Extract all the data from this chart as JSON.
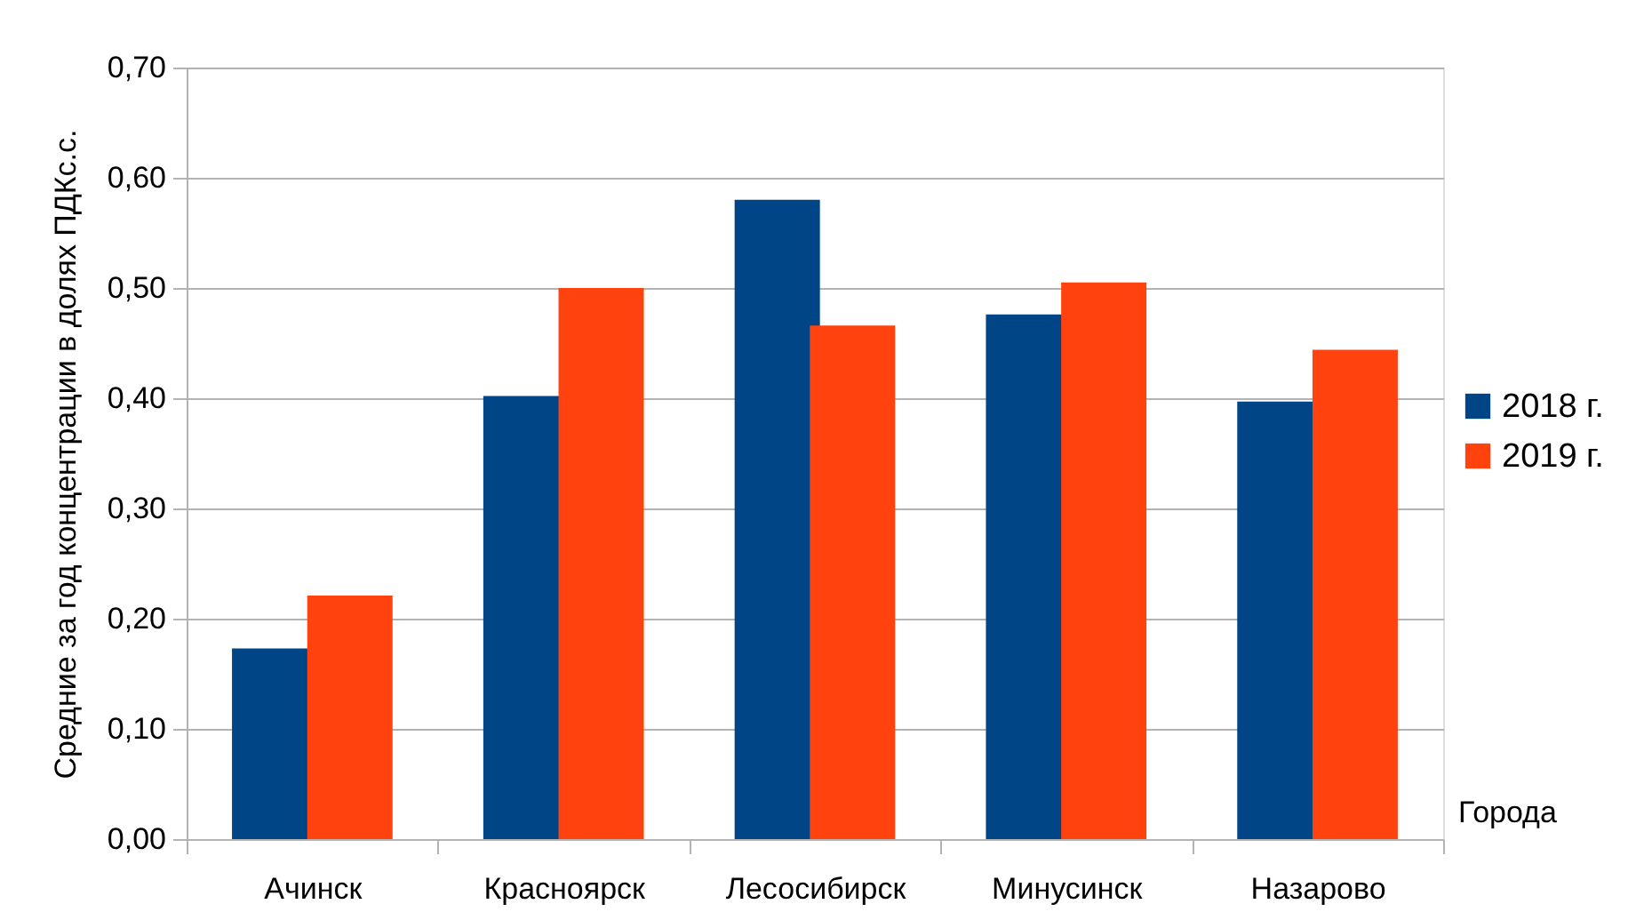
{
  "chart_data": {
    "type": "bar",
    "xlabel": "Города",
    "ylabel": "Средние за год концентрации в долях ПДКс.с.",
    "categories": [
      "Ачинск",
      "Красноярск",
      "Лесосибирск",
      "Минусинск",
      "Назарово"
    ],
    "series": [
      {
        "name": "2018 г.",
        "color": "#004586",
        "values": [
          0.173,
          0.402,
          0.58,
          0.476,
          0.397
        ]
      },
      {
        "name": "2019 г.",
        "color": "#ff420e",
        "values": [
          0.221,
          0.5,
          0.466,
          0.505,
          0.444
        ]
      }
    ],
    "ylim": [
      0,
      0.7
    ],
    "yticks": [
      {
        "value": 0,
        "label": "0,00"
      },
      {
        "value": 0.1,
        "label": "0,10"
      },
      {
        "value": 0.2,
        "label": "0,20"
      },
      {
        "value": 0.3,
        "label": "0,30"
      },
      {
        "value": 0.4,
        "label": "0,40"
      },
      {
        "value": 0.5,
        "label": "0,50"
      },
      {
        "value": 0.6,
        "label": "0,60"
      },
      {
        "value": 0.7,
        "label": "0,70"
      }
    ],
    "grid": "y",
    "legend": "right"
  }
}
